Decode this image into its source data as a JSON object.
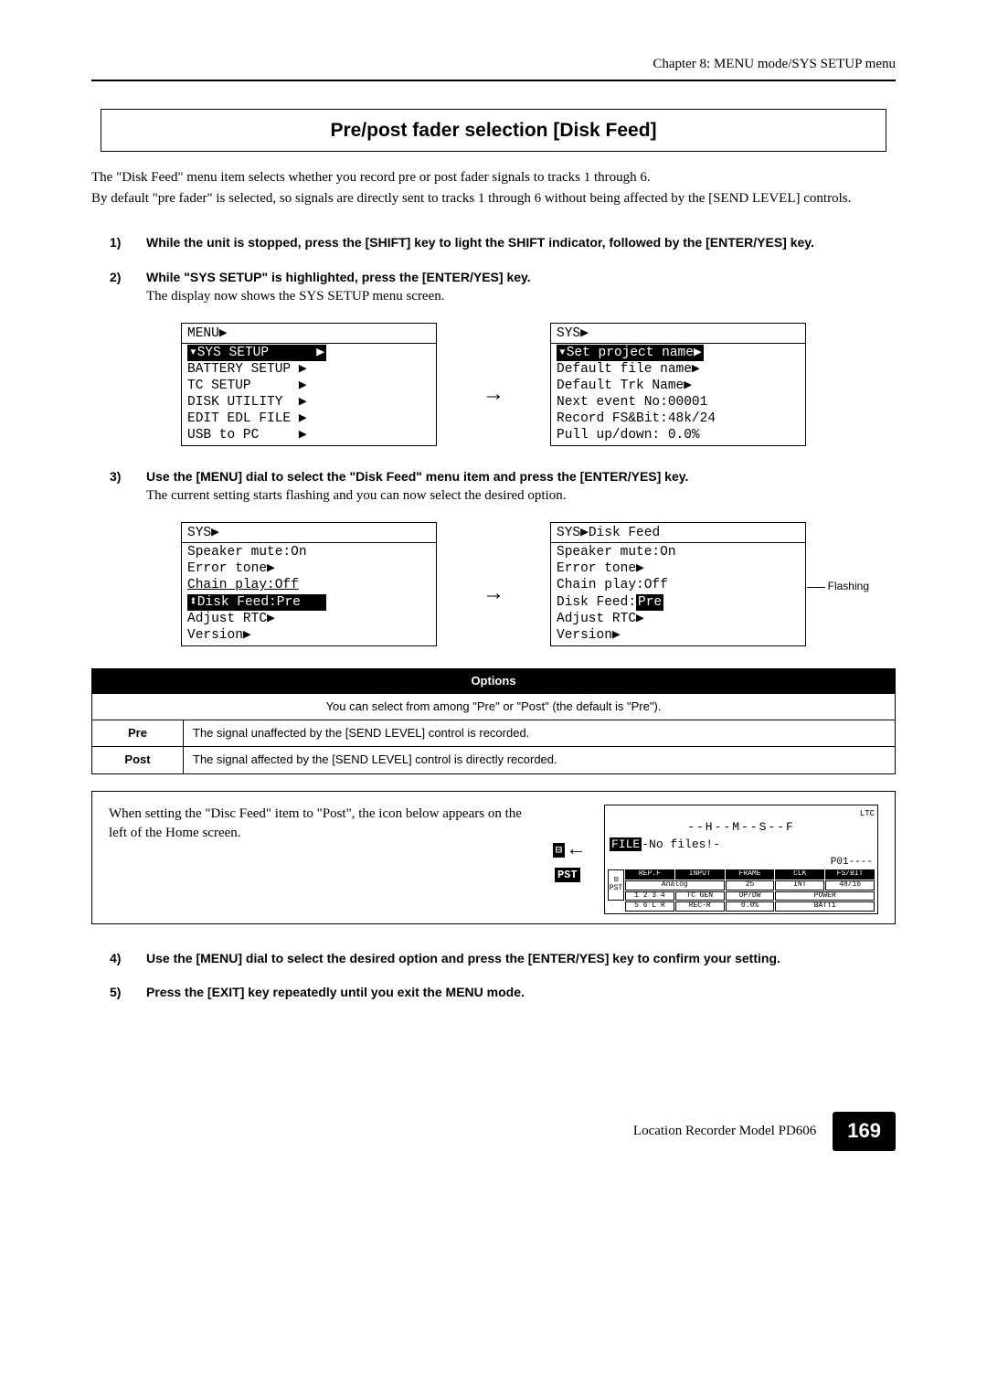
{
  "header": {
    "chapter": "Chapter 8: MENU mode/SYS SETUP menu"
  },
  "title": "Pre/post fader selection [Disk Feed]",
  "intro": {
    "p1": "The \"Disk Feed\" menu item selects whether you record pre or post fader signals to tracks 1 through 6.",
    "p2": "By default \"pre fader\" is selected, so signals are directly sent to tracks 1 through 6 without being affected by the [SEND LEVEL] controls."
  },
  "steps": {
    "s1": {
      "num": "1)",
      "text": "While the unit is stopped, press the [SHIFT] key to light the SHIFT indicator, followed by the [ENTER/YES] key."
    },
    "s2": {
      "num": "2)",
      "bold": "While \"SYS SETUP\" is highlighted, press the [ENTER/YES] key.",
      "plain": "The display now shows the SYS SETUP menu screen."
    },
    "s3": {
      "num": "3)",
      "bold": "Use the [MENU] dial to select the \"Disk Feed\" menu item and press the [ENTER/YES] key.",
      "plain": "The current setting starts flashing and you can now select the desired option."
    },
    "s4": {
      "num": "4)",
      "text": "Use the [MENU] dial to select the desired option and press the [ENTER/YES] key to confirm your setting."
    },
    "s5": {
      "num": "5)",
      "text": "Press the [EXIT] key repeatedly until you exit the MENU mode."
    }
  },
  "lcd1": {
    "left": {
      "title": "MENU▶",
      "hl": "▾SYS SETUP      ▶",
      "l2": "BATTERY SETUP ▶",
      "l3": "TC SETUP      ▶",
      "l4": "DISK UTILITY  ▶",
      "l5": "EDIT EDL FILE ▶",
      "l6": "USB to PC     ▶"
    },
    "right": {
      "title": "SYS▶",
      "hl": "▾Set project name▶",
      "l2": "Default file name▶",
      "l3": "Default Trk Name▶",
      "l4": "Next event No:00001",
      "l5": "Record FS&Bit:48k/24",
      "l6": "Pull up/down: 0.0%"
    }
  },
  "lcd2": {
    "left": {
      "title": "SYS▶",
      "l1": "Speaker mute:On",
      "l2": "Error tone▶",
      "l3": "Chain play:Off",
      "hl": "⬍Disk Feed:Pre   ",
      "l5": "Adjust RTC▶",
      "l6": "Version▶"
    },
    "right": {
      "title": "SYS▶Disk Feed",
      "l1": "Speaker mute:On",
      "l2": "Error tone▶",
      "l3": "Chain play:Off",
      "l4a": "Disk Feed:",
      "l4b": "Pre",
      "l5": "Adjust RTC▶",
      "l6": "Version▶"
    },
    "flashing": "Flashing"
  },
  "options": {
    "header": "Options",
    "caption": "You can select from among \"Pre\" or  \"Post\" (the default is \"Pre\").",
    "rows": [
      {
        "label": "Pre",
        "desc": "The signal unaffected by the [SEND LEVEL] control is recorded."
      },
      {
        "label": "Post",
        "desc": "The signal affected by the [SEND LEVEL] control is directly recorded."
      }
    ]
  },
  "callout": {
    "text": "When setting the \"Disc Feed\" item to \"Post\", the icon below appears on the left of the Home screen.",
    "icon1": "⊟",
    "icon2": "PST",
    "status": {
      "ltc": "LTC",
      "hms": "--H--M--S--F",
      "file_label": "FILE",
      "file_text": "-No files!-",
      "p01": "P01----",
      "grid": {
        "h": [
          "REP.F",
          "INPUT",
          "FRAME",
          "CLK",
          "FS/BIT"
        ],
        "r1": [
          "Analog",
          "25",
          "INT",
          "48/16"
        ],
        "r2": [
          "1 2 3 4",
          "TC GEN",
          "UP/DW",
          "POWER"
        ],
        "r3": [
          "5 6 L R",
          "REC-R",
          "0.0%",
          "BATT1"
        ]
      }
    }
  },
  "footer": {
    "text": "Location Recorder  Model PD606",
    "page": "169"
  }
}
